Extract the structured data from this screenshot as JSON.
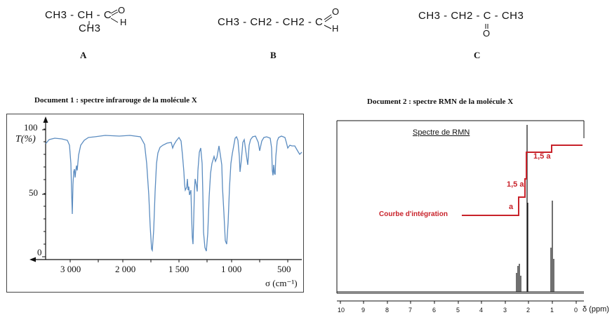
{
  "molecules": [
    {
      "label": "A",
      "row1": "CH3 - CH - C",
      "o_label": "O",
      "h_label": "H",
      "branch": "CH3"
    },
    {
      "label": "B",
      "row1": "CH3 - CH2 - CH2 - C",
      "o_label": "O",
      "h_label": "H"
    },
    {
      "label": "C",
      "row1": "CH3 - CH2 - C - CH3",
      "o_label": "O"
    }
  ],
  "doc1": {
    "title": "Document 1 : spectre infrarouge de la molécule X",
    "y_axis_label": "T(%)",
    "y_ticks": [
      "100",
      "50",
      "0"
    ],
    "x_ticks": [
      "3 000",
      "2 000",
      "1 500",
      "1 000",
      "500"
    ],
    "x_axis_label": "σ (cm⁻¹)"
  },
  "doc2": {
    "title": "Document 2 : spectre RMN de la molécule X",
    "inset_title": "Spectre de RMN",
    "integration_label": "Courbe d'intégration",
    "step_labels": [
      "a",
      "1,5 a",
      "1,5 a"
    ],
    "x_ticks": [
      "10",
      "9",
      "8",
      "7",
      "6",
      "5",
      "4",
      "3",
      "2",
      "1",
      "0"
    ],
    "x_axis_label": "δ (ppm)"
  },
  "colors": {
    "ir_line": "#5b8cc0",
    "integration": "#c8222a",
    "axes": "#111111"
  }
}
